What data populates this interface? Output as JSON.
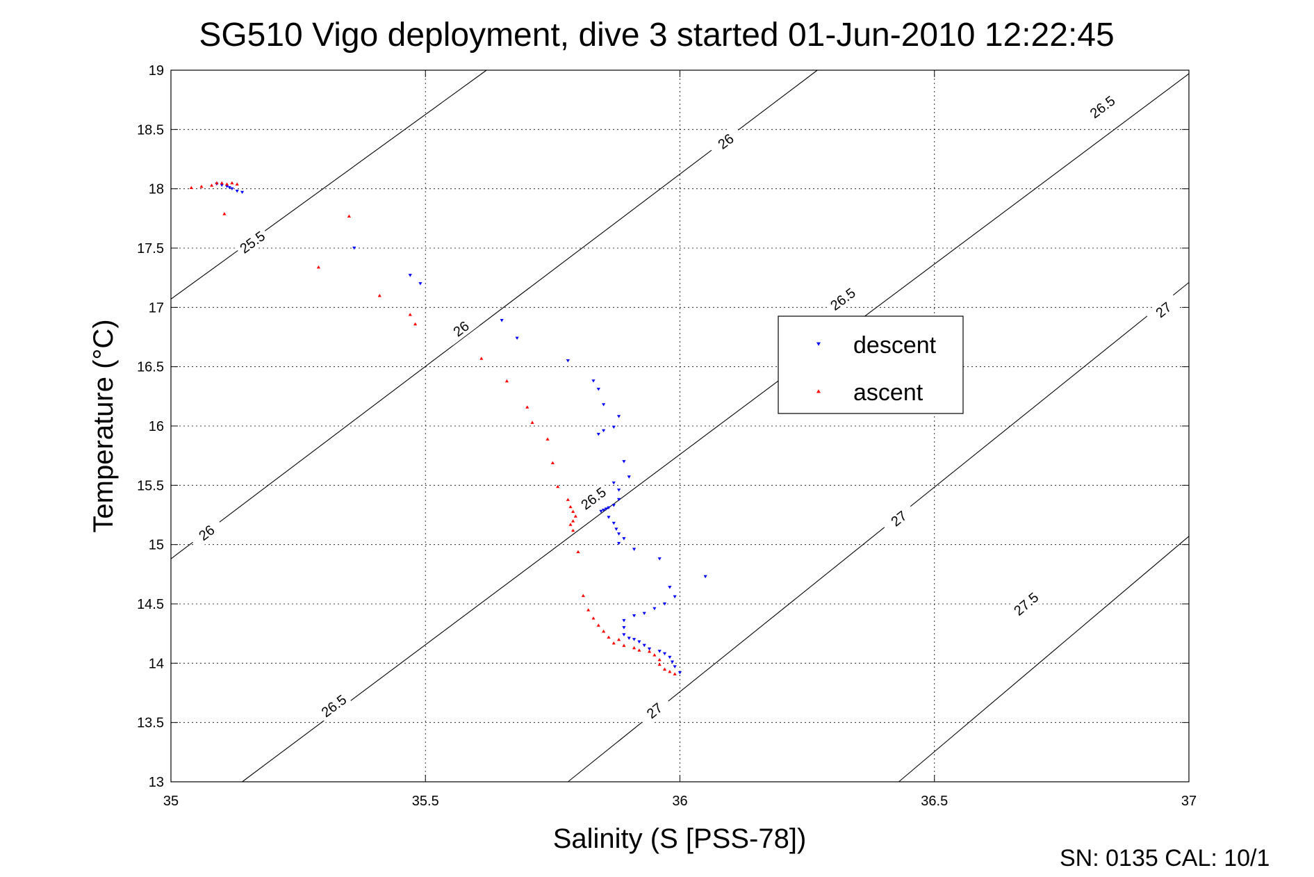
{
  "chart_data": {
    "type": "scatter",
    "title": "SG510 Vigo deployment, dive 3 started 01-Jun-2010 12:22:45",
    "xlabel": "Salinity (S [PSS-78])",
    "ylabel": "Temperature (°C)",
    "xlim": [
      35,
      37
    ],
    "ylim": [
      13,
      19
    ],
    "xticks": [
      "35",
      "35.5",
      "36",
      "36.5",
      "37"
    ],
    "yticks": [
      "13",
      "13.5",
      "14",
      "14.5",
      "15",
      "15.5",
      "16",
      "16.5",
      "17",
      "17.5",
      "18",
      "18.5",
      "19"
    ],
    "grid": true,
    "legend_position": "center-right",
    "footer": "SN: 0135  CAL: 10/1",
    "density_contours": [
      {
        "label": "25.5",
        "line": [
          [
            35,
            17.07
          ],
          [
            35.62,
            19
          ]
        ],
        "labels_at": [
          [
            35.16,
            17.55
          ]
        ]
      },
      {
        "label": "26",
        "line": [
          [
            35,
            14.88
          ],
          [
            36.27,
            19
          ]
        ],
        "labels_at": [
          [
            35.07,
            15.1
          ],
          [
            35.57,
            16.82
          ],
          [
            36.09,
            18.4
          ]
        ]
      },
      {
        "label": "26.5",
        "line": [
          [
            35.14,
            13
          ],
          [
            37,
            18.97
          ]
        ],
        "labels_at": [
          [
            35.32,
            13.64
          ],
          [
            35.83,
            15.39
          ],
          [
            36.32,
            17.07
          ],
          [
            36.83,
            18.69
          ]
        ]
      },
      {
        "label": "27",
        "line": [
          [
            35.78,
            13
          ],
          [
            37,
            17.21
          ]
        ],
        "labels_at": [
          [
            35.95,
            13.6
          ],
          [
            36.43,
            15.22
          ],
          [
            36.95,
            16.98
          ]
        ]
      },
      {
        "label": "27.5",
        "line": [
          [
            36.43,
            13
          ],
          [
            37,
            15.07
          ]
        ],
        "labels_at": [
          [
            36.68,
            14.5
          ]
        ]
      }
    ],
    "series": [
      {
        "name": "descent",
        "color": "#0000ff",
        "marker": "triangle-down",
        "points": [
          [
            35.09,
            18.04
          ],
          [
            35.1,
            18.03
          ],
          [
            35.11,
            18.02
          ],
          [
            35.115,
            18.01
          ],
          [
            35.12,
            18.0
          ],
          [
            35.13,
            17.98
          ],
          [
            35.14,
            17.97
          ],
          [
            35.36,
            17.5
          ],
          [
            35.47,
            17.27
          ],
          [
            35.49,
            17.2
          ],
          [
            35.65,
            16.89
          ],
          [
            35.68,
            16.74
          ],
          [
            35.78,
            16.55
          ],
          [
            35.83,
            16.38
          ],
          [
            35.84,
            16.31
          ],
          [
            35.85,
            16.18
          ],
          [
            35.88,
            16.08
          ],
          [
            35.87,
            15.99
          ],
          [
            35.85,
            15.96
          ],
          [
            35.84,
            15.93
          ],
          [
            35.89,
            15.7
          ],
          [
            35.9,
            15.57
          ],
          [
            35.87,
            15.52
          ],
          [
            35.88,
            15.46
          ],
          [
            35.88,
            15.38
          ],
          [
            35.87,
            15.33
          ],
          [
            35.86,
            15.31
          ],
          [
            35.855,
            15.3
          ],
          [
            35.85,
            15.29
          ],
          [
            35.845,
            15.28
          ],
          [
            35.86,
            15.23
          ],
          [
            35.87,
            15.18
          ],
          [
            35.875,
            15.13
          ],
          [
            35.88,
            15.09
          ],
          [
            35.89,
            15.05
          ],
          [
            35.88,
            15.01
          ],
          [
            35.91,
            14.96
          ],
          [
            35.96,
            14.88
          ],
          [
            36.05,
            14.73
          ],
          [
            35.98,
            14.64
          ],
          [
            35.99,
            14.56
          ],
          [
            35.97,
            14.5
          ],
          [
            35.95,
            14.46
          ],
          [
            35.93,
            14.42
          ],
          [
            35.91,
            14.4
          ],
          [
            35.89,
            14.36
          ],
          [
            35.89,
            14.3
          ],
          [
            35.89,
            14.24
          ],
          [
            35.9,
            14.21
          ],
          [
            35.91,
            14.2
          ],
          [
            35.92,
            14.18
          ],
          [
            35.93,
            14.15
          ],
          [
            35.94,
            14.12
          ],
          [
            35.96,
            14.1
          ],
          [
            35.97,
            14.08
          ],
          [
            35.98,
            14.05
          ],
          [
            35.985,
            14.01
          ],
          [
            35.99,
            13.97
          ],
          [
            36.0,
            13.92
          ]
        ]
      },
      {
        "name": "ascent",
        "color": "#ff0000",
        "marker": "triangle-up",
        "points": [
          [
            35.04,
            18.01
          ],
          [
            35.06,
            18.02
          ],
          [
            35.08,
            18.03
          ],
          [
            35.09,
            18.05
          ],
          [
            35.1,
            18.05
          ],
          [
            35.11,
            18.04
          ],
          [
            35.12,
            18.05
          ],
          [
            35.13,
            18.04
          ],
          [
            35.105,
            17.79
          ],
          [
            35.35,
            17.77
          ],
          [
            35.29,
            17.34
          ],
          [
            35.41,
            17.1
          ],
          [
            35.47,
            16.94
          ],
          [
            35.48,
            16.86
          ],
          [
            35.61,
            16.57
          ],
          [
            35.66,
            16.38
          ],
          [
            35.7,
            16.16
          ],
          [
            35.71,
            16.03
          ],
          [
            35.74,
            15.89
          ],
          [
            35.75,
            15.69
          ],
          [
            35.76,
            15.49
          ],
          [
            35.78,
            15.38
          ],
          [
            35.785,
            15.32
          ],
          [
            35.79,
            15.28
          ],
          [
            35.795,
            15.24
          ],
          [
            35.79,
            15.2
          ],
          [
            35.785,
            15.17
          ],
          [
            35.79,
            15.12
          ],
          [
            35.8,
            14.94
          ],
          [
            35.81,
            14.57
          ],
          [
            35.82,
            14.45
          ],
          [
            35.83,
            14.38
          ],
          [
            35.84,
            14.32
          ],
          [
            35.85,
            14.27
          ],
          [
            35.86,
            14.22
          ],
          [
            35.88,
            14.2
          ],
          [
            35.87,
            14.17
          ],
          [
            35.89,
            14.15
          ],
          [
            35.91,
            14.13
          ],
          [
            35.92,
            14.11
          ],
          [
            35.94,
            14.1
          ],
          [
            35.95,
            14.07
          ],
          [
            35.96,
            14.03
          ],
          [
            35.96,
            13.99
          ],
          [
            35.97,
            13.95
          ],
          [
            35.98,
            13.93
          ],
          [
            35.99,
            13.91
          ]
        ]
      }
    ]
  }
}
